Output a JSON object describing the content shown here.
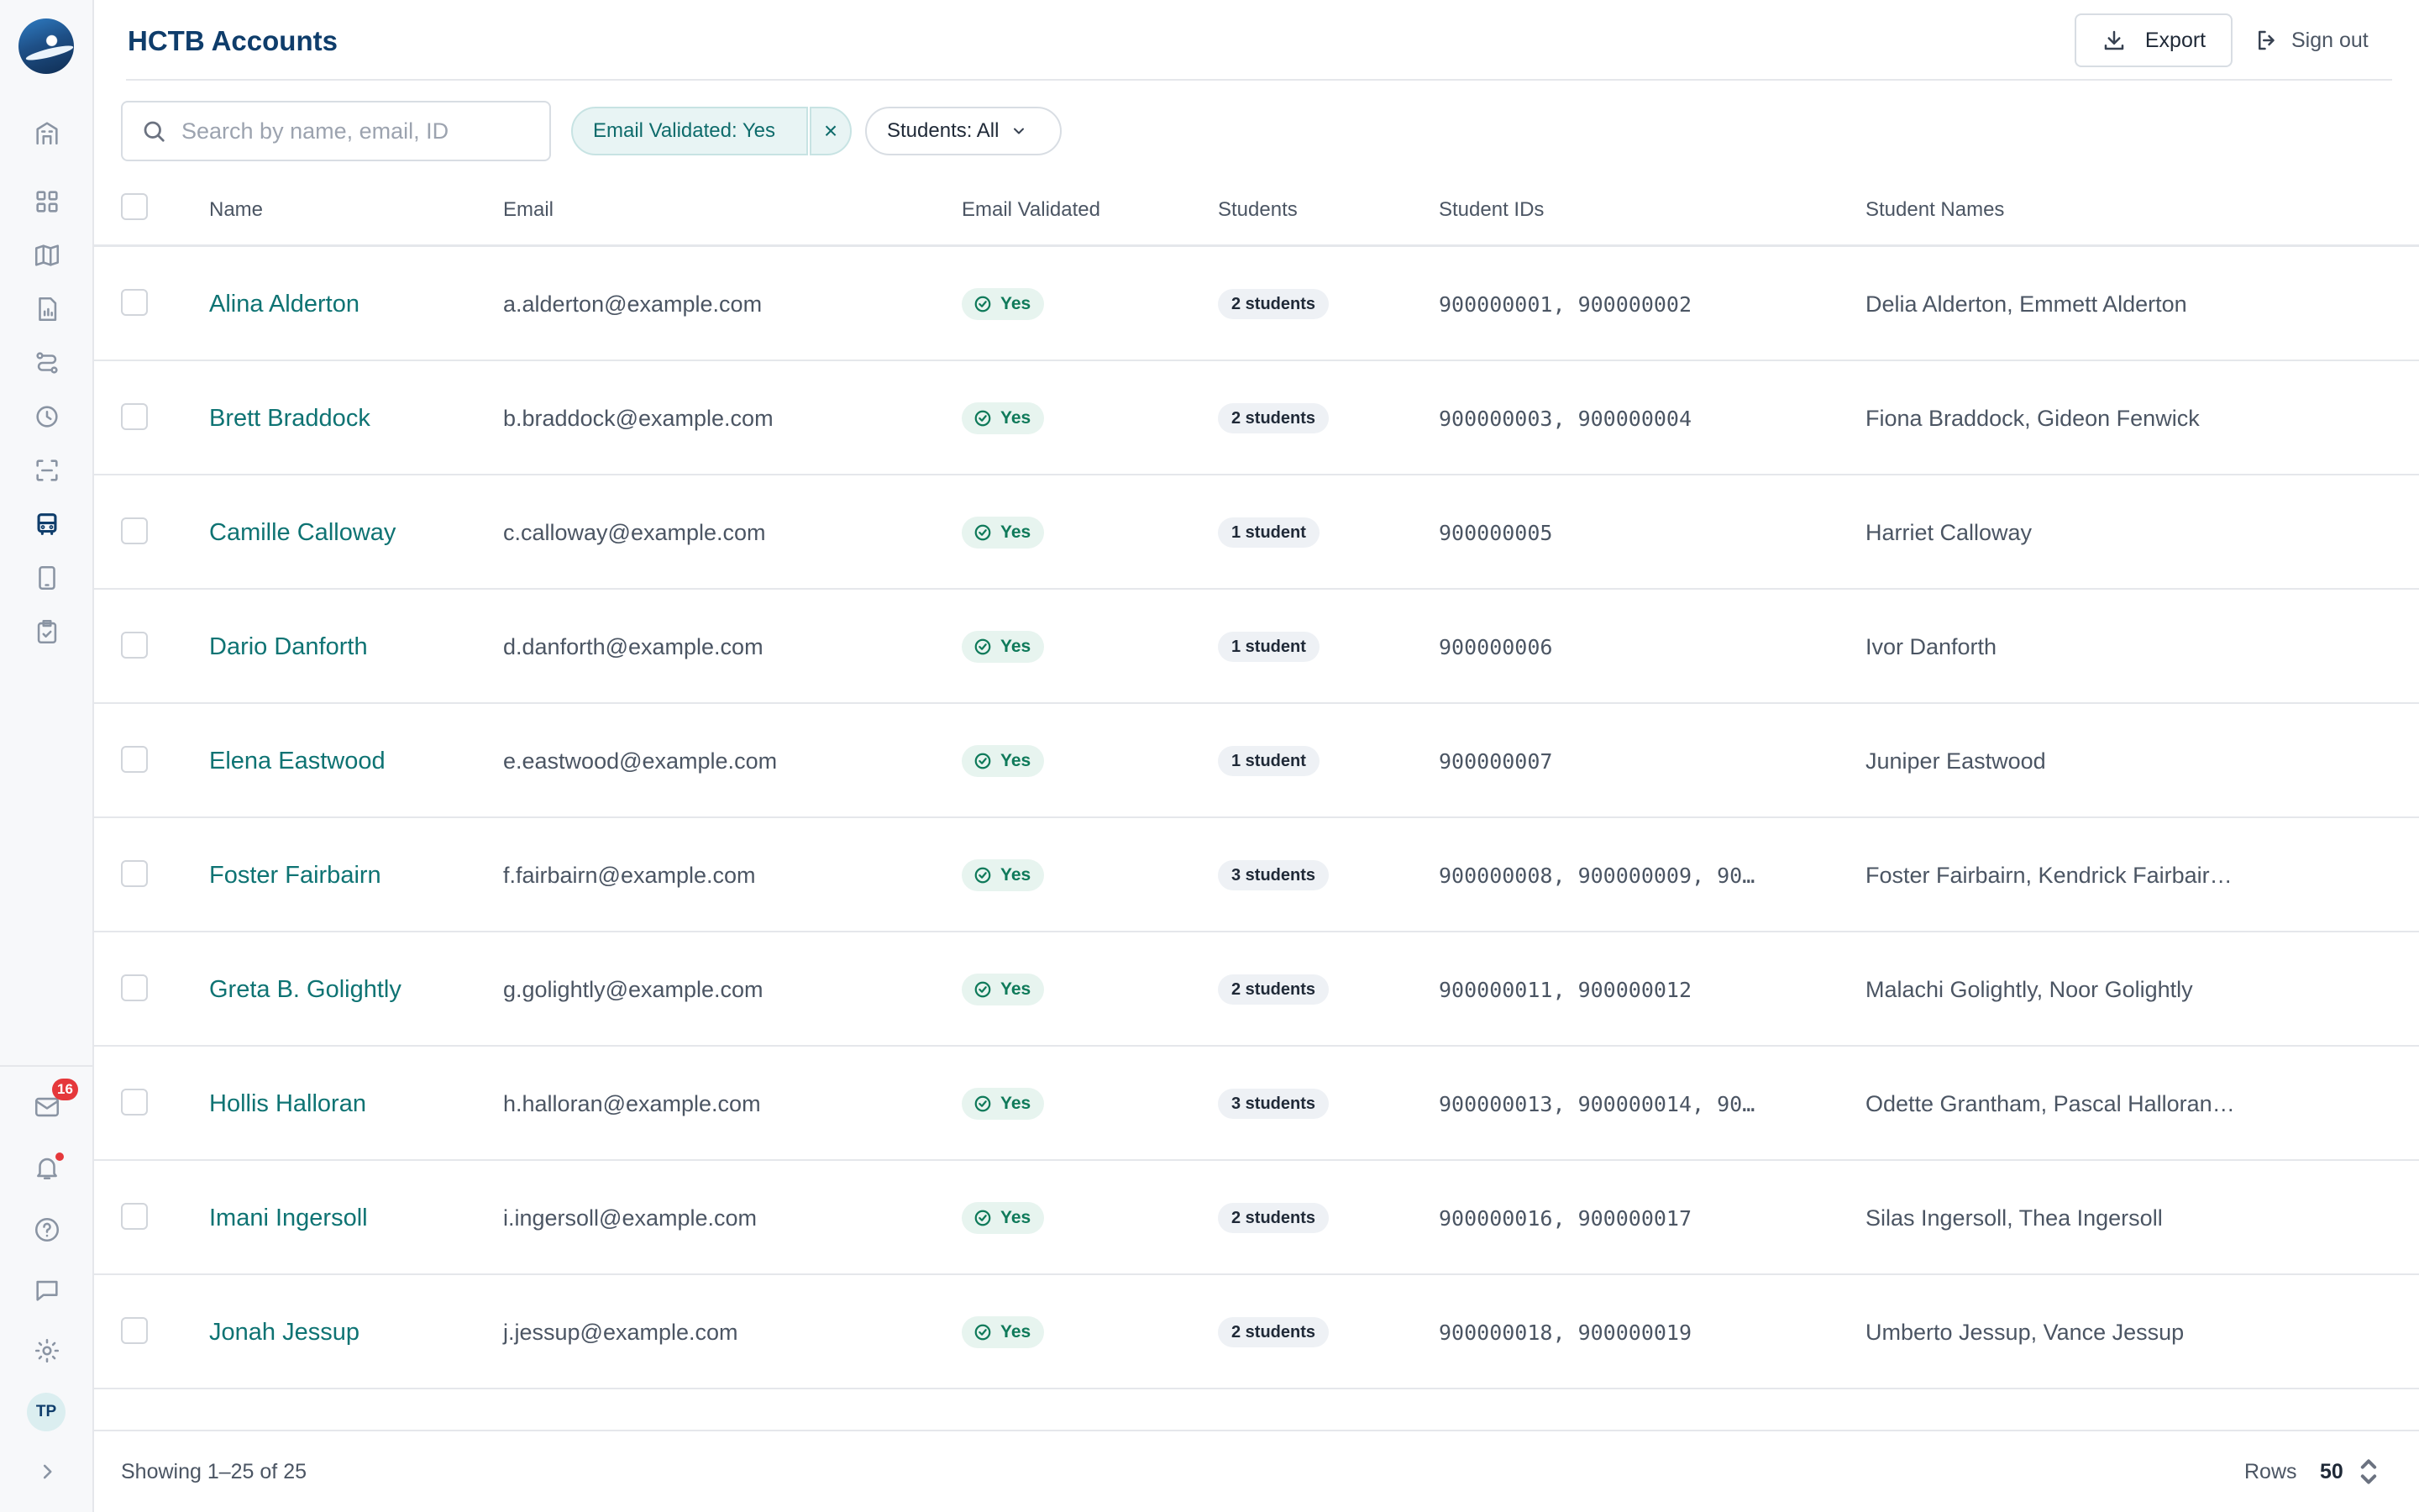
{
  "app": {
    "title": "HCTB Accounts"
  },
  "header": {
    "export_label": "Export",
    "signout_label": "Sign out"
  },
  "search": {
    "placeholder": "Search by name, email, ID",
    "value": ""
  },
  "filters": {
    "validated_chip": "Email Validated: Yes",
    "students_chip": "Students: All"
  },
  "sidebar": {
    "items": [
      {
        "icon": "building-icon"
      },
      {
        "icon": "dashboard-icon"
      },
      {
        "icon": "map-icon"
      },
      {
        "icon": "report-icon"
      },
      {
        "icon": "routes-icon"
      },
      {
        "icon": "clock-icon"
      },
      {
        "icon": "scan-icon"
      },
      {
        "icon": "bus-icon",
        "active": true
      },
      {
        "icon": "tablet-icon"
      },
      {
        "icon": "clipboard-check-icon"
      }
    ],
    "bottom": {
      "mail_count": "16",
      "avatar_initials": "TP"
    }
  },
  "table": {
    "columns": [
      "Name",
      "Email",
      "Email Validated",
      "Students",
      "Student IDs",
      "Student Names"
    ],
    "rows": [
      {
        "name": "Alina Alderton",
        "email": "a.alderton@example.com",
        "validated": "Yes",
        "students": "2 students",
        "ids": "900000001, 900000002",
        "student_names": "Delia Alderton, Emmett Alderton"
      },
      {
        "name": "Brett Braddock",
        "email": "b.braddock@example.com",
        "validated": "Yes",
        "students": "2 students",
        "ids": "900000003, 900000004",
        "student_names": "Fiona Braddock, Gideon Fenwick"
      },
      {
        "name": "Camille Calloway",
        "email": "c.calloway@example.com",
        "validated": "Yes",
        "students": "1 student",
        "ids": "900000005",
        "student_names": "Harriet Calloway"
      },
      {
        "name": "Dario Danforth",
        "email": "d.danforth@example.com",
        "validated": "Yes",
        "students": "1 student",
        "ids": "900000006",
        "student_names": "Ivor Danforth"
      },
      {
        "name": "Elena Eastwood",
        "email": "e.eastwood@example.com",
        "validated": "Yes",
        "students": "1 student",
        "ids": "900000007",
        "student_names": "Juniper Eastwood"
      },
      {
        "name": "Foster Fairbairn",
        "email": "f.fairbairn@example.com",
        "validated": "Yes",
        "students": "3 students",
        "ids": "900000008, 900000009, 90…",
        "student_names": "Foster Fairbairn, Kendrick Fairbair…"
      },
      {
        "name": "Greta B. Golightly",
        "email": "g.golightly@example.com",
        "validated": "Yes",
        "students": "2 students",
        "ids": "900000011, 900000012",
        "student_names": "Malachi Golightly, Noor Golightly"
      },
      {
        "name": "Hollis Halloran",
        "email": "h.halloran@example.com",
        "validated": "Yes",
        "students": "3 students",
        "ids": "900000013, 900000014, 90…",
        "student_names": "Odette Grantham, Pascal Halloran…"
      },
      {
        "name": "Imani Ingersoll",
        "email": "i.ingersoll@example.com",
        "validated": "Yes",
        "students": "2 students",
        "ids": "900000016, 900000017",
        "student_names": "Silas Ingersoll, Thea Ingersoll"
      },
      {
        "name": "Jonah Jessup",
        "email": "j.jessup@example.com",
        "validated": "Yes",
        "students": "2 students",
        "ids": "900000018, 900000019",
        "student_names": "Umberto Jessup, Vance Jessup"
      }
    ]
  },
  "footer": {
    "showing": "Showing 1–25 of 25",
    "rows_label": "Rows",
    "rows_value": "50"
  },
  "colors": {
    "brand": "#0f3d6b",
    "accent": "#0e7373",
    "success": "#0f7a5a",
    "badge": "#e5383b"
  }
}
